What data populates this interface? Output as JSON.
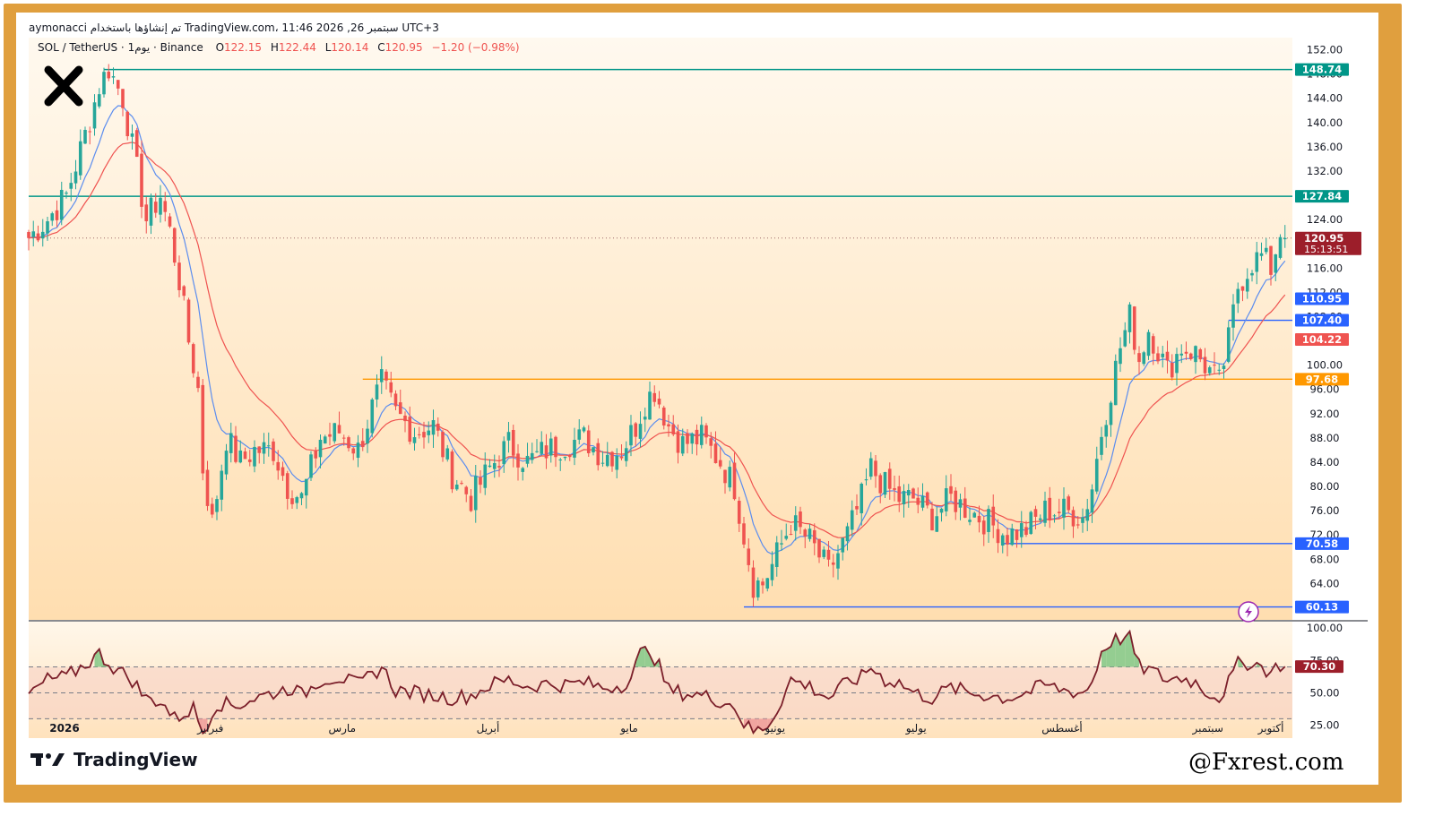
{
  "header": {
    "author_line": "aymonacci تم إنشاؤها باستخدام TradingView.com، 11:46 2026 ,26 سبتمبر UTC+3",
    "symbol": "SOL / TetherUS · 1يوم · Binance",
    "ohlc": {
      "o_label": "O",
      "o": "122.15",
      "h_label": "H",
      "h": "122.44",
      "l_label": "L",
      "l": "120.14",
      "c_label": "C",
      "c": "120.95",
      "change": "−1.20 (−0.98%)"
    }
  },
  "footer": {
    "brand": "TradingView",
    "watermark": "@Fxrest.com"
  },
  "colors": {
    "frame": "#e09f3e",
    "up": "#26a69a",
    "down": "#ef5350",
    "ema_fast": "#5b8def",
    "ema_slow": "#ef5350",
    "rsi": "#7b1f2a",
    "teal_level": "#009688",
    "orange_level": "#ff9800",
    "blue_level": "#2962ff"
  },
  "chart_data": [
    {
      "type": "candlestick",
      "title": "",
      "y_axis": {
        "range": [
          58,
          154
        ],
        "ticks": [
          "152.00",
          "148.00",
          "144.00",
          "140.00",
          "136.00",
          "132.00",
          "128.00",
          "124.00",
          "120.00",
          "116.00",
          "112.00",
          "108.00",
          "104.00",
          "100.00",
          "96.00",
          "92.00",
          "88.00",
          "84.00",
          "80.00",
          "76.00",
          "72.00",
          "68.00",
          "64.00"
        ]
      },
      "x_axis": {
        "labels": [
          "2026",
          "فبراير",
          "مارس",
          "أبريل",
          "مايو",
          "يونيو",
          "يوليو",
          "أغسطس",
          "سبتمبر",
          "أكتوبر"
        ],
        "label_days": [
          0,
          31,
          59,
          90,
          120,
          151,
          181,
          212,
          243,
          273
        ]
      },
      "last_price": {
        "value": 120.95,
        "label": "120.95",
        "countdown": "15:13:51"
      },
      "current_day": 267,
      "horizontal_levels": [
        {
          "value": 148.74,
          "label": "148.74",
          "color": "#009688",
          "from_day": 16
        },
        {
          "value": 127.84,
          "label": "127.84",
          "color": "#009688",
          "from_day": 0
        },
        {
          "value": 97.68,
          "label": "97.68",
          "color": "#ff9800",
          "from_day": 71
        },
        {
          "value": 107.4,
          "label": "107.40",
          "color": "#2962ff",
          "from_day": 255
        },
        {
          "value": 70.58,
          "label": "70.58",
          "color": "#2962ff",
          "from_day": 207
        },
        {
          "value": 60.13,
          "label": "60.13",
          "color": "#2962ff",
          "from_day": 152
        }
      ],
      "ma_labels": [
        {
          "value": 110.95,
          "label": "110.95",
          "color": "#2962ff"
        },
        {
          "value": 104.22,
          "label": "104.22",
          "color": "#ef5350"
        }
      ],
      "price_path": [
        [
          0,
          121
        ],
        [
          4,
          124
        ],
        [
          8,
          128
        ],
        [
          12,
          138
        ],
        [
          15,
          146
        ],
        [
          17,
          149
        ],
        [
          20,
          144
        ],
        [
          22,
          136
        ],
        [
          25,
          124
        ],
        [
          28,
          128
        ],
        [
          30,
          122
        ],
        [
          32,
          114
        ],
        [
          34,
          104
        ],
        [
          36,
          96
        ],
        [
          37,
          83
        ],
        [
          39,
          74
        ],
        [
          42,
          88
        ],
        [
          45,
          84
        ],
        [
          48,
          86
        ],
        [
          52,
          86
        ],
        [
          55,
          80
        ],
        [
          58,
          78
        ],
        [
          62,
          88
        ],
        [
          66,
          89
        ],
        [
          70,
          86
        ],
        [
          73,
          93
        ],
        [
          75,
          97
        ],
        [
          78,
          92
        ],
        [
          82,
          89
        ],
        [
          86,
          90
        ],
        [
          90,
          82
        ],
        [
          94,
          78
        ],
        [
          98,
          83
        ],
        [
          102,
          87
        ],
        [
          106,
          84
        ],
        [
          110,
          86
        ],
        [
          114,
          87
        ],
        [
          118,
          88
        ],
        [
          122,
          85
        ],
        [
          126,
          86
        ],
        [
          129,
          90
        ],
        [
          131,
          94
        ],
        [
          133,
          96
        ],
        [
          136,
          90
        ],
        [
          139,
          87
        ],
        [
          143,
          88
        ],
        [
          147,
          84
        ],
        [
          150,
          80
        ],
        [
          152,
          72
        ],
        [
          154,
          64
        ],
        [
          156,
          64
        ],
        [
          158,
          67
        ],
        [
          162,
          74
        ],
        [
          166,
          71
        ],
        [
          170,
          66
        ],
        [
          174,
          72
        ],
        [
          177,
          78
        ],
        [
          179,
          83
        ],
        [
          182,
          80
        ],
        [
          185,
          78
        ],
        [
          188,
          78
        ],
        [
          192,
          75
        ],
        [
          196,
          78
        ],
        [
          200,
          76
        ],
        [
          204,
          74
        ],
        [
          208,
          72
        ],
        [
          212,
          73
        ],
        [
          216,
          76
        ],
        [
          220,
          76
        ],
        [
          224,
          75
        ],
        [
          226,
          80
        ],
        [
          228,
          89
        ],
        [
          230,
          96
        ],
        [
          232,
          103
        ],
        [
          234,
          108
        ],
        [
          236,
          101
        ],
        [
          238,
          106
        ],
        [
          242,
          99
        ],
        [
          245,
          103
        ],
        [
          248,
          102
        ],
        [
          250,
          100
        ],
        [
          253,
          97
        ],
        [
          255,
          104
        ],
        [
          257,
          113
        ],
        [
          260,
          117
        ],
        [
          262,
          118
        ],
        [
          264,
          116
        ],
        [
          266,
          122
        ],
        [
          267,
          120.95
        ]
      ]
    },
    {
      "type": "line",
      "title": "",
      "y_axis": {
        "range": [
          15,
          105
        ],
        "ticks": [
          "100.00",
          "75.00",
          "50.00",
          "25.00"
        ]
      },
      "bands": [
        70,
        50,
        30
      ],
      "last_value": {
        "value": 70.3,
        "label": "70.30"
      },
      "rsi_path": [
        [
          0,
          48
        ],
        [
          4,
          60
        ],
        [
          8,
          62
        ],
        [
          12,
          72
        ],
        [
          15,
          80
        ],
        [
          18,
          70
        ],
        [
          22,
          60
        ],
        [
          25,
          45
        ],
        [
          28,
          44
        ],
        [
          31,
          30
        ],
        [
          35,
          38
        ],
        [
          37,
          20
        ],
        [
          40,
          42
        ],
        [
          44,
          40
        ],
        [
          48,
          46
        ],
        [
          52,
          50
        ],
        [
          56,
          54
        ],
        [
          58,
          48
        ],
        [
          62,
          60
        ],
        [
          66,
          62
        ],
        [
          70,
          56
        ],
        [
          73,
          64
        ],
        [
          75,
          70
        ],
        [
          78,
          52
        ],
        [
          82,
          50
        ],
        [
          86,
          48
        ],
        [
          90,
          46
        ],
        [
          94,
          48
        ],
        [
          98,
          56
        ],
        [
          102,
          60
        ],
        [
          106,
          55
        ],
        [
          110,
          57
        ],
        [
          114,
          56
        ],
        [
          118,
          58
        ],
        [
          122,
          54
        ],
        [
          126,
          56
        ],
        [
          128,
          62
        ],
        [
          130,
          80
        ],
        [
          132,
          84
        ],
        [
          134,
          70
        ],
        [
          136,
          52
        ],
        [
          139,
          50
        ],
        [
          143,
          48
        ],
        [
          147,
          44
        ],
        [
          150,
          40
        ],
        [
          152,
          26
        ],
        [
          154,
          20
        ],
        [
          156,
          22
        ],
        [
          158,
          30
        ],
        [
          162,
          60
        ],
        [
          166,
          55
        ],
        [
          170,
          46
        ],
        [
          174,
          58
        ],
        [
          177,
          62
        ],
        [
          179,
          70
        ],
        [
          182,
          60
        ],
        [
          185,
          58
        ],
        [
          188,
          50
        ],
        [
          192,
          46
        ],
        [
          196,
          54
        ],
        [
          200,
          50
        ],
        [
          204,
          48
        ],
        [
          208,
          46
        ],
        [
          212,
          50
        ],
        [
          216,
          56
        ],
        [
          220,
          52
        ],
        [
          224,
          50
        ],
        [
          226,
          58
        ],
        [
          228,
          82
        ],
        [
          230,
          90
        ],
        [
          232,
          92
        ],
        [
          234,
          92
        ],
        [
          236,
          70
        ],
        [
          238,
          68
        ],
        [
          242,
          60
        ],
        [
          245,
          62
        ],
        [
          248,
          58
        ],
        [
          250,
          52
        ],
        [
          253,
          46
        ],
        [
          255,
          58
        ],
        [
          257,
          72
        ],
        [
          260,
          74
        ],
        [
          262,
          70
        ],
        [
          264,
          66
        ],
        [
          266,
          72
        ],
        [
          267,
          70.3
        ]
      ]
    }
  ]
}
